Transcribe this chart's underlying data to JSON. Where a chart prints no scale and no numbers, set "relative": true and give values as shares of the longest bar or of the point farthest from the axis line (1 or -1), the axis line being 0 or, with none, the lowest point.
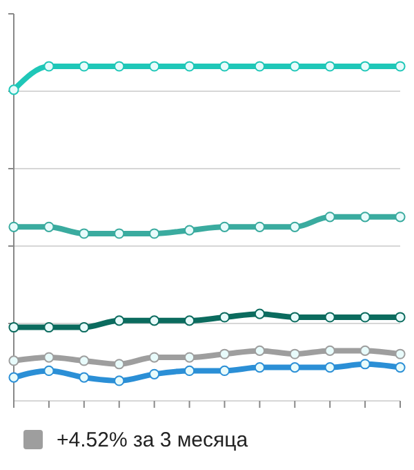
{
  "chart_data": {
    "type": "line",
    "relative": true,
    "categories": [
      null,
      null,
      null,
      null,
      null,
      null,
      null,
      null,
      null,
      null,
      null,
      null
    ],
    "series": [
      {
        "color": "#1fc7b8",
        "values": [
          0.93,
          1,
          1,
          1,
          1,
          1,
          1,
          1,
          1,
          1,
          1,
          1
        ]
      },
      {
        "color": "#3aab9f",
        "values": [
          0.52,
          0.52,
          0.5,
          0.5,
          0.5,
          0.51,
          0.52,
          0.52,
          0.52,
          0.55,
          0.55,
          0.55
        ]
      },
      {
        "color": "#0b6b5e",
        "values": [
          0.22,
          0.22,
          0.22,
          0.24,
          0.24,
          0.24,
          0.25,
          0.26,
          0.25,
          0.25,
          0.25,
          0.25
        ]
      },
      {
        "name": "+4.52% за 3 месяца",
        "color": "#9e9e9e",
        "values": [
          0.12,
          0.13,
          0.12,
          0.11,
          0.13,
          0.13,
          0.14,
          0.15,
          0.14,
          0.15,
          0.15,
          0.14
        ]
      },
      {
        "color": "#2b8fd6",
        "values": [
          0.07,
          0.09,
          0.07,
          0.06,
          0.08,
          0.09,
          0.09,
          0.1,
          0.1,
          0.1,
          0.11,
          0.1
        ]
      }
    ],
    "grid": "y",
    "legend": "bottom",
    "marker": "circle",
    "line_style": "solid"
  }
}
